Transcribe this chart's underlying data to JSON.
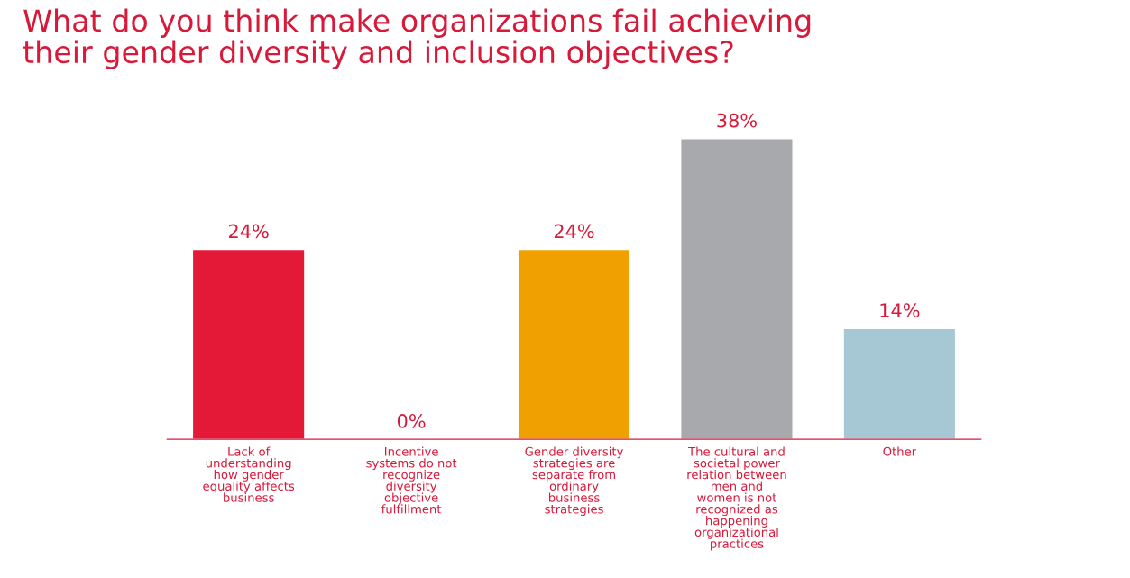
{
  "chart_data": {
    "type": "bar",
    "title": "What do you think make organizations fail achieving\ntheir gender diversity and inclusion objectives?",
    "categories": [
      "Lack of\nunderstanding\nhow gender\nequality affects\nbusiness",
      "Incentive\nsystems do not\nrecognize\ndiversity\nobjective\nfulfillment",
      "Gender diversity\nstrategies are\nseparate from\nordinary\nbusiness\nstrategies",
      "The cultural and\nsocietal power\nrelation between\nmen and\nwomen is not\nrecognized as\nhappening\norganizational\npractices",
      "Other"
    ],
    "values": [
      24,
      0,
      24,
      38,
      14
    ],
    "colors": [
      "#e31937",
      null,
      "#f0a000",
      "#a7a9ac",
      "#a6c8d4"
    ],
    "value_labels": [
      "24%",
      "0%",
      "24%",
      "38%",
      "14%"
    ],
    "grid": false,
    "legend": false
  }
}
